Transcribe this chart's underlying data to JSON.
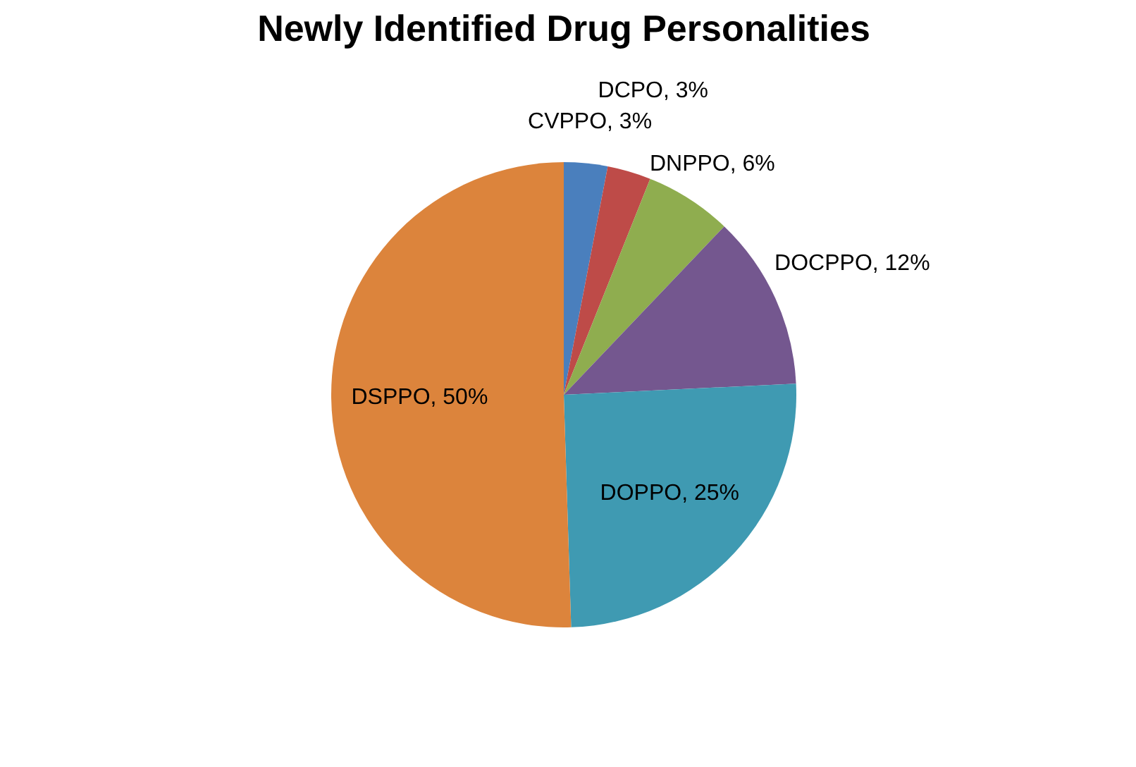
{
  "chart_data": {
    "type": "pie",
    "title": "Newly Identified  Drug Personalities",
    "categories": [
      "CVPPO",
      "DCPO",
      "DNPPO",
      "DOCPPO",
      "DOPPO",
      "DSPPO"
    ],
    "values": [
      3,
      3,
      6,
      12,
      25,
      50
    ],
    "colors": [
      "#4a7fbd",
      "#be4b48",
      "#8fad4f",
      "#74578f",
      "#3f9ab2",
      "#dc843c"
    ],
    "value_labels": [
      "3%",
      "3%",
      "6%",
      "12%",
      "25%",
      "50%"
    ]
  }
}
